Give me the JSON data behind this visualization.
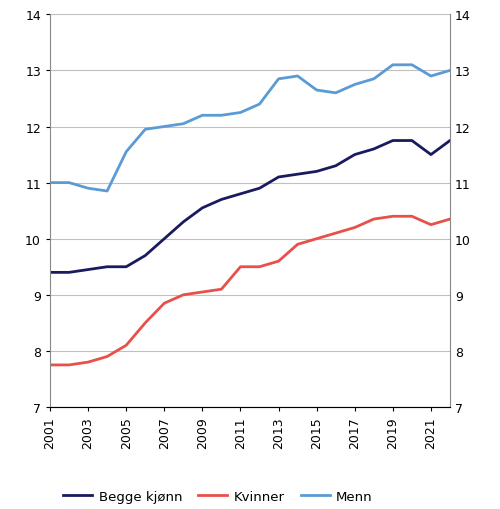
{
  "years": [
    2001,
    2002,
    2003,
    2004,
    2005,
    2006,
    2007,
    2008,
    2009,
    2010,
    2011,
    2012,
    2013,
    2014,
    2015,
    2016,
    2017,
    2018,
    2019,
    2020,
    2021,
    2022
  ],
  "begge_kjonn": [
    9.4,
    9.4,
    9.45,
    9.5,
    9.5,
    9.7,
    10.0,
    10.3,
    10.55,
    10.7,
    10.8,
    10.9,
    11.1,
    11.15,
    11.2,
    11.3,
    11.5,
    11.6,
    11.75,
    11.75,
    11.5,
    11.75
  ],
  "kvinner": [
    7.75,
    7.75,
    7.8,
    7.9,
    8.1,
    8.5,
    8.85,
    9.0,
    9.05,
    9.1,
    9.5,
    9.5,
    9.6,
    9.9,
    10.0,
    10.1,
    10.2,
    10.35,
    10.4,
    10.4,
    10.25,
    10.35
  ],
  "menn": [
    11.0,
    11.0,
    10.9,
    10.85,
    11.55,
    11.95,
    12.0,
    12.05,
    12.2,
    12.2,
    12.25,
    12.4,
    12.85,
    12.9,
    12.65,
    12.6,
    12.75,
    12.85,
    13.1,
    13.1,
    12.9,
    13.0
  ],
  "begge_kjonn_color": "#1a1a5e",
  "kvinner_color": "#e8504a",
  "menn_color": "#5b9bd5",
  "ylim": [
    7,
    14
  ],
  "yticks": [
    7,
    8,
    9,
    10,
    11,
    12,
    13,
    14
  ],
  "xtick_years": [
    2001,
    2003,
    2005,
    2007,
    2009,
    2011,
    2013,
    2015,
    2017,
    2019,
    2021
  ],
  "legend_labels": [
    "Begge kjønn",
    "Kvinner",
    "Menn"
  ],
  "line_width": 2.0,
  "background_color": "#ffffff",
  "grid_color": "#c0c0c0"
}
